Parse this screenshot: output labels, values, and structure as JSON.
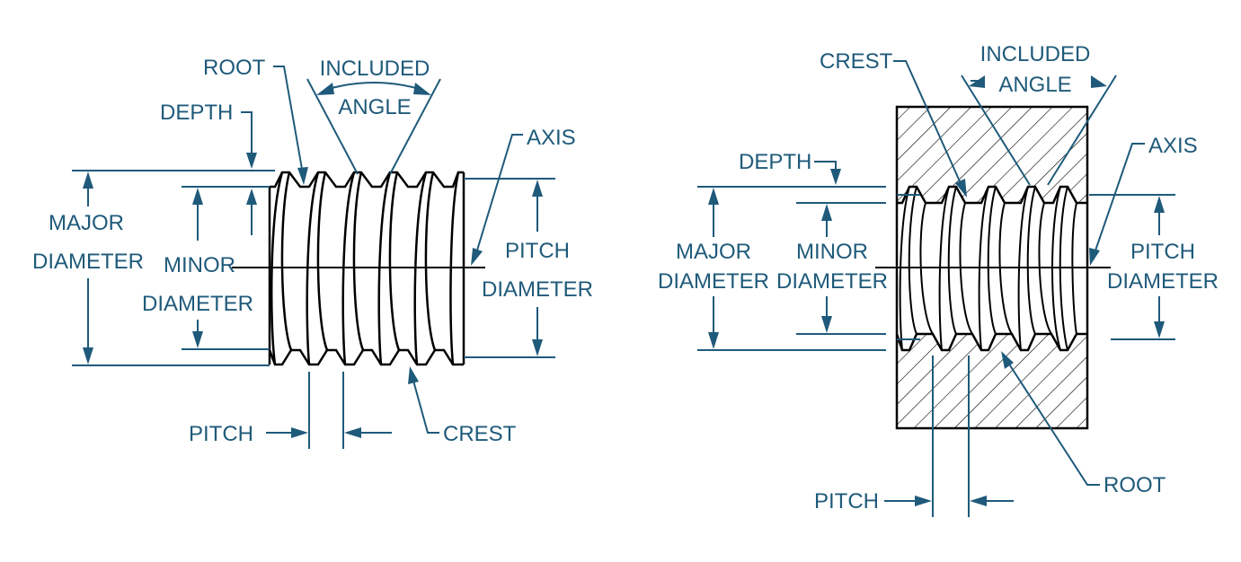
{
  "external_thread": {
    "labels": {
      "root": "ROOT",
      "included_angle_1": "INCLUDED",
      "included_angle_2": "ANGLE",
      "depth": "DEPTH",
      "axis": "AXIS",
      "major_diameter_1": "MAJOR",
      "major_diameter_2": "DIAMETER",
      "minor_1": "MINOR",
      "minor_2": "DIAMETER",
      "pitch_diameter_1": "PITCH",
      "pitch_diameter_2": "DIAMETER",
      "pitch": "PITCH",
      "crest": "CREST"
    }
  },
  "internal_thread": {
    "labels": {
      "crest": "CREST",
      "included_angle_1": "INCLUDED",
      "included_angle_2": "ANGLE",
      "depth": "DEPTH",
      "axis": "AXIS",
      "major_diameter_1": "MAJOR",
      "major_diameter_2": "DIAMETER",
      "minor_diameter_1": "MINOR",
      "minor_diameter_2": "DIAMETER",
      "pitch_diameter_1": "PITCH",
      "pitch_diameter_2": "DIAMETER",
      "root": "ROOT",
      "pitch": "PITCH"
    }
  },
  "colors": {
    "annotation": "#1f5a7a",
    "object_line": "#000000",
    "background": "#ffffff"
  }
}
